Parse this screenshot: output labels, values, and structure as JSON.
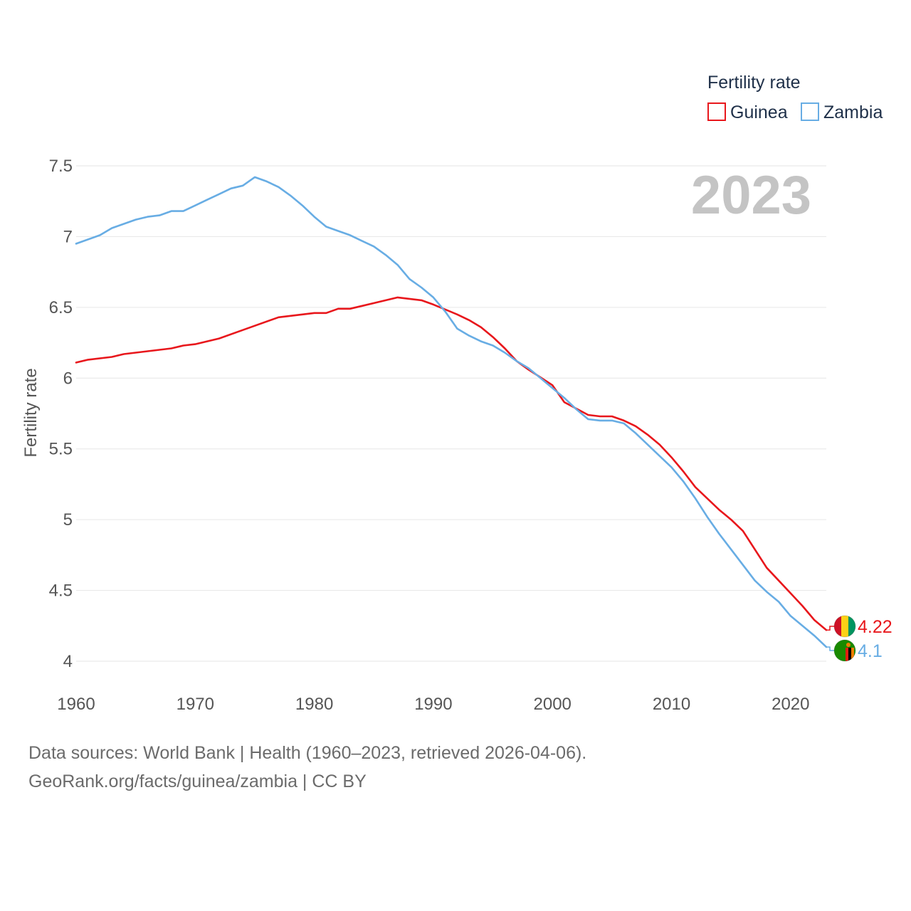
{
  "chart_data": {
    "type": "line",
    "title": "Fertility rate",
    "watermark_year": "2023",
    "xlabel": "",
    "ylabel": "Fertility rate",
    "xlim": [
      1960,
      2023
    ],
    "ylim": [
      4,
      7.5
    ],
    "x_ticks": [
      "1960",
      "1970",
      "1980",
      "1990",
      "2000",
      "2010",
      "2020"
    ],
    "y_ticks": [
      "4",
      "4.5",
      "5",
      "5.5",
      "6",
      "6.5",
      "7",
      "7.5"
    ],
    "grid": true,
    "legend_position": "top-right",
    "series": [
      {
        "name": "Guinea",
        "color": "#e8171c",
        "end_label": "4.22",
        "flag": "guinea-flag",
        "years": [
          1960,
          1961,
          1963,
          1964,
          1966,
          1968,
          1969,
          1970,
          1972,
          1974,
          1977,
          1980,
          1981,
          1982,
          1983,
          1985,
          1987,
          1989,
          1990,
          1992,
          1993,
          1994,
          1995,
          1996,
          1997,
          1998,
          2000,
          2001,
          2003,
          2004,
          2005,
          2006,
          2007,
          2008,
          2009,
          2010,
          2011,
          2012,
          2013,
          2014,
          2015,
          2016,
          2017,
          2018,
          2019,
          2020,
          2021,
          2022,
          2023
        ],
        "values": [
          6.11,
          6.13,
          6.15,
          6.17,
          6.19,
          6.21,
          6.23,
          6.24,
          6.28,
          6.34,
          6.43,
          6.46,
          6.46,
          6.49,
          6.49,
          6.53,
          6.57,
          6.55,
          6.52,
          6.45,
          6.41,
          6.36,
          6.29,
          6.21,
          6.12,
          6.06,
          5.95,
          5.83,
          5.74,
          5.73,
          5.73,
          5.7,
          5.66,
          5.6,
          5.53,
          5.44,
          5.34,
          5.23,
          5.15,
          5.07,
          5.0,
          4.92,
          4.79,
          4.66,
          4.57,
          4.48,
          4.39,
          4.29,
          4.22
        ]
      },
      {
        "name": "Zambia",
        "color": "#68ade4",
        "end_label": "4.1",
        "flag": "zambia-flag",
        "years": [
          1960,
          1962,
          1963,
          1965,
          1966,
          1967,
          1968,
          1969,
          1970,
          1971,
          1972,
          1973,
          1974,
          1975,
          1976,
          1977,
          1978,
          1979,
          1980,
          1981,
          1982,
          1983,
          1984,
          1985,
          1986,
          1987,
          1988,
          1989,
          1990,
          1991,
          1992,
          1993,
          1994,
          1995,
          1996,
          1997,
          1998,
          1999,
          2000,
          2001,
          2002,
          2003,
          2004,
          2005,
          2006,
          2007,
          2008,
          2009,
          2010,
          2011,
          2012,
          2013,
          2014,
          2015,
          2016,
          2017,
          2018,
          2019,
          2020,
          2021,
          2022,
          2023
        ],
        "values": [
          6.95,
          7.01,
          7.06,
          7.12,
          7.14,
          7.15,
          7.18,
          7.18,
          7.22,
          7.26,
          7.3,
          7.34,
          7.36,
          7.42,
          7.39,
          7.35,
          7.29,
          7.22,
          7.14,
          7.07,
          7.04,
          7.01,
          6.97,
          6.93,
          6.87,
          6.8,
          6.7,
          6.64,
          6.57,
          6.47,
          6.35,
          6.3,
          6.26,
          6.23,
          6.18,
          6.12,
          6.07,
          6.0,
          5.93,
          5.86,
          5.78,
          5.71,
          5.7,
          5.7,
          5.68,
          5.61,
          5.53,
          5.45,
          5.37,
          5.27,
          5.15,
          5.02,
          4.9,
          4.79,
          4.68,
          4.57,
          4.49,
          4.42,
          4.32,
          4.25,
          4.18,
          4.1
        ]
      }
    ]
  },
  "footer": {
    "line1": "Data sources: World Bank | Health (1960–2023, retrieved 2026-04-06).",
    "line2": "GeoRank.org/facts/guinea/zambia | CC BY"
  }
}
